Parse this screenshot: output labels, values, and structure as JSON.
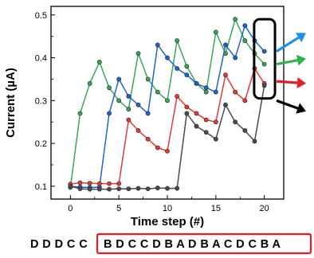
{
  "chart_data": {
    "type": "line",
    "xlabel": "Time step (#)",
    "ylabel": "Current (µA)",
    "xlim": [
      -2,
      22
    ],
    "ylim": [
      0.07,
      0.52
    ],
    "xticks": [
      0,
      5,
      10,
      15,
      20
    ],
    "yticks": [
      0.1,
      0.2,
      0.3,
      0.4,
      0.5
    ],
    "ytick_labels": [
      "0.1",
      "0.2",
      "0.3",
      "0.4",
      "0.5"
    ],
    "x": [
      0,
      1,
      2,
      3,
      4,
      5,
      6,
      7,
      8,
      9,
      10,
      11,
      12,
      13,
      14,
      15,
      16,
      17,
      18,
      19,
      20
    ],
    "series": [
      {
        "color": "#3aa757",
        "values": [
          0.097,
          0.27,
          0.34,
          0.39,
          0.33,
          0.3,
          0.28,
          0.41,
          0.35,
          0.32,
          0.3,
          0.44,
          0.38,
          0.34,
          0.32,
          0.46,
          0.41,
          0.49,
          0.44,
          0.41,
          0.385
        ]
      },
      {
        "color": "#1f63d2",
        "values": [
          0.1,
          0.098,
          0.097,
          0.098,
          0.27,
          0.35,
          0.31,
          0.29,
          0.27,
          0.43,
          0.4,
          0.375,
          0.36,
          0.34,
          0.33,
          0.32,
          0.43,
          0.4,
          0.475,
          0.44,
          0.415
        ]
      },
      {
        "color": "#e53935",
        "values": [
          0.105,
          0.108,
          0.107,
          0.106,
          0.106,
          0.106,
          0.255,
          0.23,
          0.21,
          0.19,
          0.182,
          0.31,
          0.285,
          0.27,
          0.255,
          0.25,
          0.36,
          0.32,
          0.3,
          0.375,
          0.34
        ]
      },
      {
        "color": "#4a4a4a",
        "values": [
          0.1,
          0.094,
          0.093,
          0.093,
          0.093,
          0.094,
          0.094,
          0.095,
          0.094,
          0.096,
          0.095,
          0.095,
          0.27,
          0.24,
          0.226,
          0.21,
          0.29,
          0.25,
          0.23,
          0.205,
          0.335
        ]
      }
    ],
    "sequence_prefix": "D D D C C",
    "sequence_boxed": "B D C C D B A D B A C D C B A"
  },
  "colors": {
    "highlight_box": "#000000",
    "sequence_box": "#e21f26",
    "arrows": [
      "#1e90e8",
      "#2db34a",
      "#e21f26",
      "#000000"
    ]
  }
}
